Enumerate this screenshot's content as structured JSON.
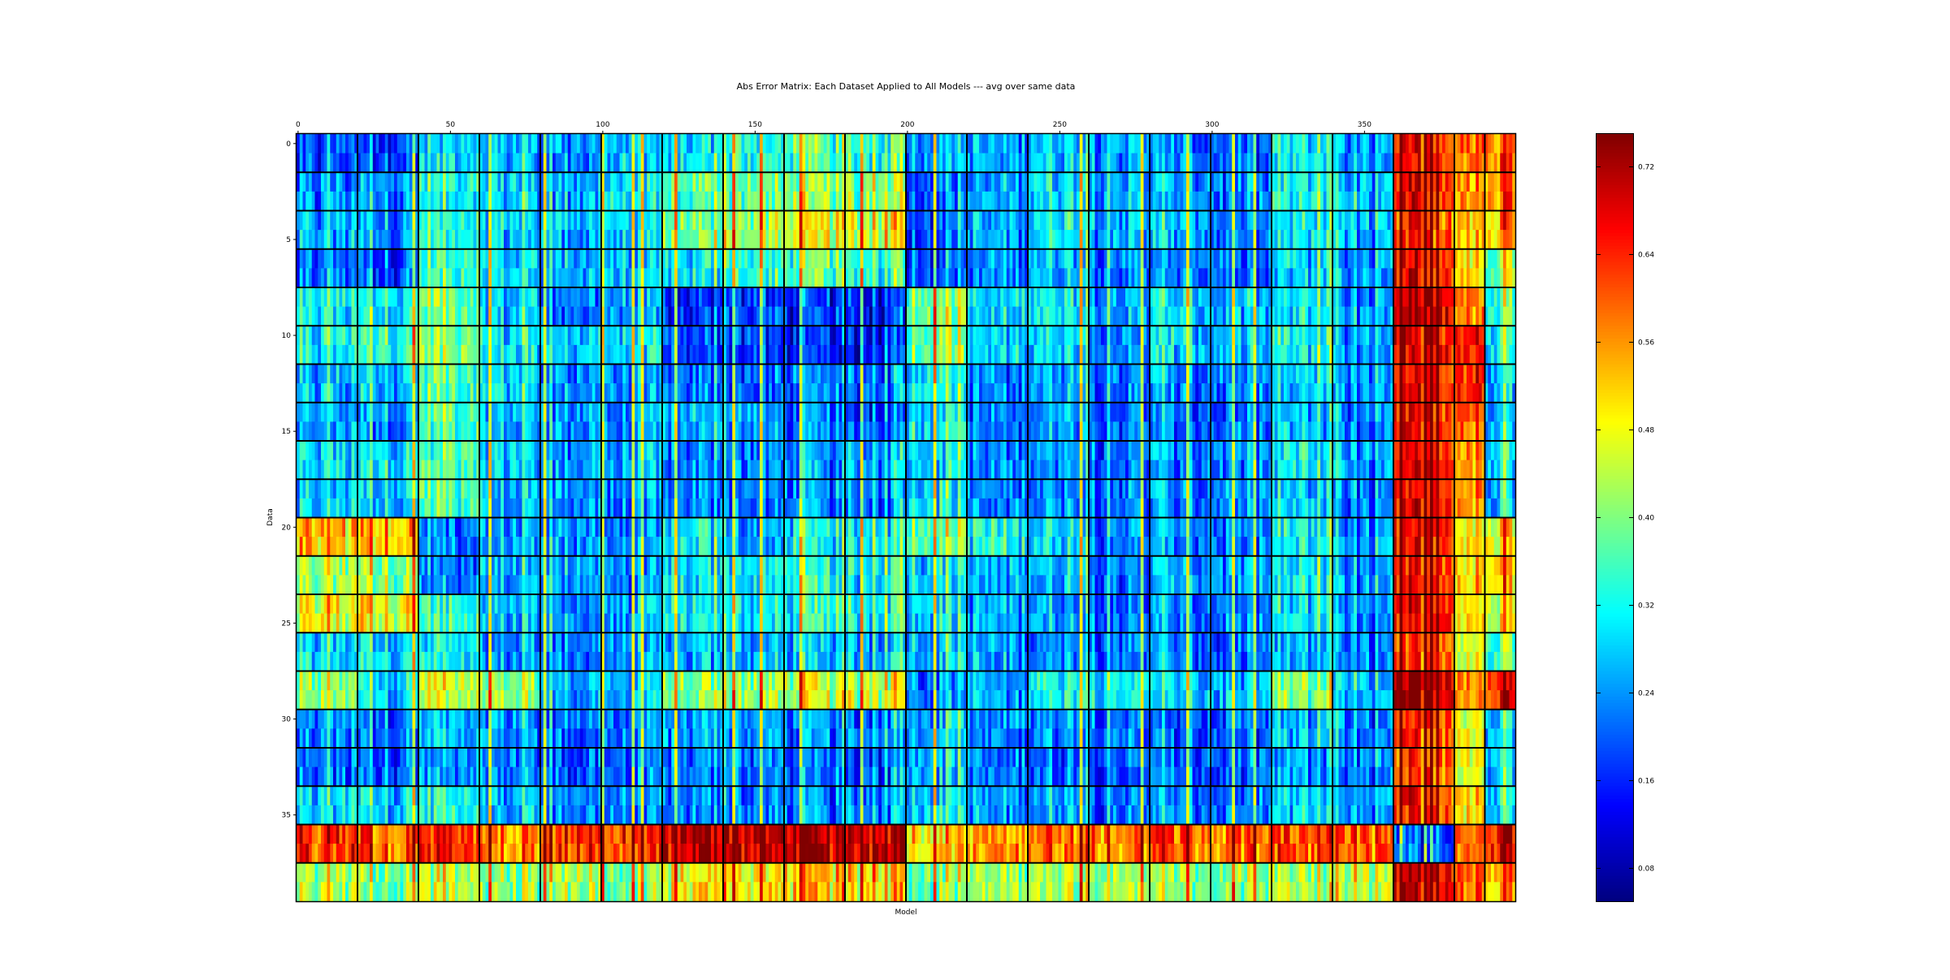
{
  "chart_data": {
    "type": "heatmap",
    "title": "Abs Error Matrix: Each Dataset Applied to All Models --- avg over same data",
    "xlabel": "Model",
    "ylabel": "Data",
    "x_range": [
      0,
      400
    ],
    "y_range": [
      0,
      40
    ],
    "x_ticks": [
      0,
      50,
      100,
      150,
      200,
      250,
      300,
      350
    ],
    "x_tick_labels": [
      "0",
      "50",
      "100",
      "150",
      "200",
      "250",
      "300",
      "350"
    ],
    "y_ticks": [
      0,
      5,
      10,
      15,
      20,
      25,
      30,
      35
    ],
    "y_tick_labels": [
      "0",
      "5",
      "10",
      "15",
      "20",
      "25",
      "30",
      "35"
    ],
    "colormap": "jet",
    "color_range": [
      0.05,
      0.75
    ],
    "colorbar_ticks": [
      0.08,
      0.16,
      0.24,
      0.32,
      0.4,
      0.48,
      0.56,
      0.64,
      0.72
    ],
    "colorbar_tick_labels": [
      "0.08",
      "0.16",
      "0.24",
      "0.32",
      "0.40",
      "0.48",
      "0.56",
      "0.64",
      "0.72"
    ],
    "model_groups": [
      0,
      20,
      40,
      60,
      80,
      100,
      120,
      140,
      160,
      180,
      200,
      220,
      240,
      260,
      280,
      300,
      320,
      340,
      360,
      380,
      390,
      400
    ],
    "data_groups": [
      0,
      2,
      4,
      6,
      8,
      10,
      12,
      14,
      16,
      18,
      20,
      22,
      24,
      26,
      28,
      30,
      32,
      34,
      36,
      38,
      40
    ],
    "block_mean_error": [
      [
        0.18,
        0.2,
        0.3,
        0.26,
        0.24,
        0.27,
        0.3,
        0.32,
        0.36,
        0.34,
        0.26,
        0.24,
        0.28,
        0.26,
        0.22,
        0.2,
        0.3,
        0.22,
        0.64,
        0.6,
        0.62
      ],
      [
        0.22,
        0.24,
        0.34,
        0.28,
        0.26,
        0.3,
        0.36,
        0.38,
        0.4,
        0.4,
        0.22,
        0.24,
        0.3,
        0.26,
        0.24,
        0.22,
        0.32,
        0.24,
        0.66,
        0.56,
        0.6
      ],
      [
        0.24,
        0.24,
        0.34,
        0.28,
        0.26,
        0.28,
        0.38,
        0.42,
        0.46,
        0.46,
        0.2,
        0.24,
        0.32,
        0.26,
        0.26,
        0.22,
        0.3,
        0.24,
        0.62,
        0.52,
        0.56
      ],
      [
        0.2,
        0.2,
        0.36,
        0.28,
        0.26,
        0.26,
        0.3,
        0.34,
        0.36,
        0.34,
        0.2,
        0.22,
        0.28,
        0.24,
        0.22,
        0.2,
        0.28,
        0.22,
        0.66,
        0.5,
        0.44
      ],
      [
        0.3,
        0.32,
        0.4,
        0.28,
        0.22,
        0.24,
        0.16,
        0.18,
        0.16,
        0.14,
        0.4,
        0.28,
        0.32,
        0.26,
        0.28,
        0.26,
        0.3,
        0.22,
        0.7,
        0.58,
        0.38
      ],
      [
        0.3,
        0.36,
        0.42,
        0.3,
        0.28,
        0.28,
        0.18,
        0.18,
        0.14,
        0.14,
        0.4,
        0.28,
        0.3,
        0.24,
        0.28,
        0.26,
        0.32,
        0.22,
        0.68,
        0.66,
        0.34
      ],
      [
        0.26,
        0.28,
        0.38,
        0.28,
        0.24,
        0.24,
        0.22,
        0.2,
        0.2,
        0.2,
        0.32,
        0.22,
        0.26,
        0.22,
        0.22,
        0.22,
        0.28,
        0.22,
        0.66,
        0.64,
        0.3
      ],
      [
        0.24,
        0.24,
        0.38,
        0.26,
        0.24,
        0.24,
        0.26,
        0.26,
        0.2,
        0.18,
        0.32,
        0.22,
        0.26,
        0.22,
        0.2,
        0.2,
        0.26,
        0.2,
        0.66,
        0.6,
        0.3
      ],
      [
        0.28,
        0.3,
        0.38,
        0.28,
        0.24,
        0.24,
        0.22,
        0.22,
        0.22,
        0.24,
        0.3,
        0.22,
        0.26,
        0.22,
        0.22,
        0.22,
        0.3,
        0.22,
        0.66,
        0.56,
        0.32
      ],
      [
        0.26,
        0.28,
        0.38,
        0.26,
        0.24,
        0.22,
        0.22,
        0.22,
        0.22,
        0.22,
        0.3,
        0.22,
        0.24,
        0.22,
        0.22,
        0.22,
        0.28,
        0.2,
        0.66,
        0.56,
        0.3
      ],
      [
        0.52,
        0.54,
        0.24,
        0.24,
        0.24,
        0.22,
        0.3,
        0.24,
        0.3,
        0.3,
        0.4,
        0.32,
        0.3,
        0.24,
        0.22,
        0.22,
        0.3,
        0.22,
        0.66,
        0.5,
        0.52
      ],
      [
        0.42,
        0.42,
        0.24,
        0.26,
        0.26,
        0.22,
        0.3,
        0.3,
        0.32,
        0.3,
        0.3,
        0.26,
        0.28,
        0.22,
        0.24,
        0.24,
        0.3,
        0.22,
        0.64,
        0.52,
        0.54
      ],
      [
        0.46,
        0.48,
        0.36,
        0.26,
        0.24,
        0.24,
        0.3,
        0.3,
        0.32,
        0.32,
        0.3,
        0.26,
        0.26,
        0.22,
        0.22,
        0.22,
        0.3,
        0.2,
        0.66,
        0.5,
        0.5
      ],
      [
        0.28,
        0.3,
        0.32,
        0.24,
        0.22,
        0.24,
        0.26,
        0.26,
        0.26,
        0.26,
        0.28,
        0.24,
        0.24,
        0.22,
        0.22,
        0.2,
        0.26,
        0.2,
        0.62,
        0.46,
        0.4
      ],
      [
        0.4,
        0.3,
        0.46,
        0.4,
        0.26,
        0.26,
        0.4,
        0.42,
        0.44,
        0.44,
        0.24,
        0.24,
        0.34,
        0.3,
        0.28,
        0.26,
        0.4,
        0.24,
        0.72,
        0.56,
        0.66
      ],
      [
        0.22,
        0.22,
        0.28,
        0.24,
        0.22,
        0.22,
        0.24,
        0.24,
        0.22,
        0.22,
        0.28,
        0.22,
        0.24,
        0.22,
        0.2,
        0.2,
        0.26,
        0.2,
        0.62,
        0.48,
        0.3
      ],
      [
        0.2,
        0.2,
        0.26,
        0.22,
        0.2,
        0.2,
        0.22,
        0.22,
        0.2,
        0.2,
        0.28,
        0.22,
        0.22,
        0.2,
        0.2,
        0.2,
        0.24,
        0.2,
        0.62,
        0.46,
        0.3
      ],
      [
        0.28,
        0.28,
        0.34,
        0.26,
        0.24,
        0.22,
        0.22,
        0.22,
        0.22,
        0.22,
        0.3,
        0.24,
        0.26,
        0.22,
        0.22,
        0.22,
        0.28,
        0.22,
        0.64,
        0.52,
        0.32
      ],
      [
        0.62,
        0.6,
        0.64,
        0.56,
        0.64,
        0.62,
        0.7,
        0.7,
        0.7,
        0.7,
        0.52,
        0.56,
        0.6,
        0.58,
        0.6,
        0.58,
        0.6,
        0.58,
        0.2,
        0.58,
        0.7
      ],
      [
        0.42,
        0.4,
        0.46,
        0.4,
        0.44,
        0.4,
        0.48,
        0.5,
        0.52,
        0.5,
        0.4,
        0.42,
        0.44,
        0.42,
        0.4,
        0.4,
        0.42,
        0.42,
        0.7,
        0.6,
        0.58
      ]
    ]
  }
}
